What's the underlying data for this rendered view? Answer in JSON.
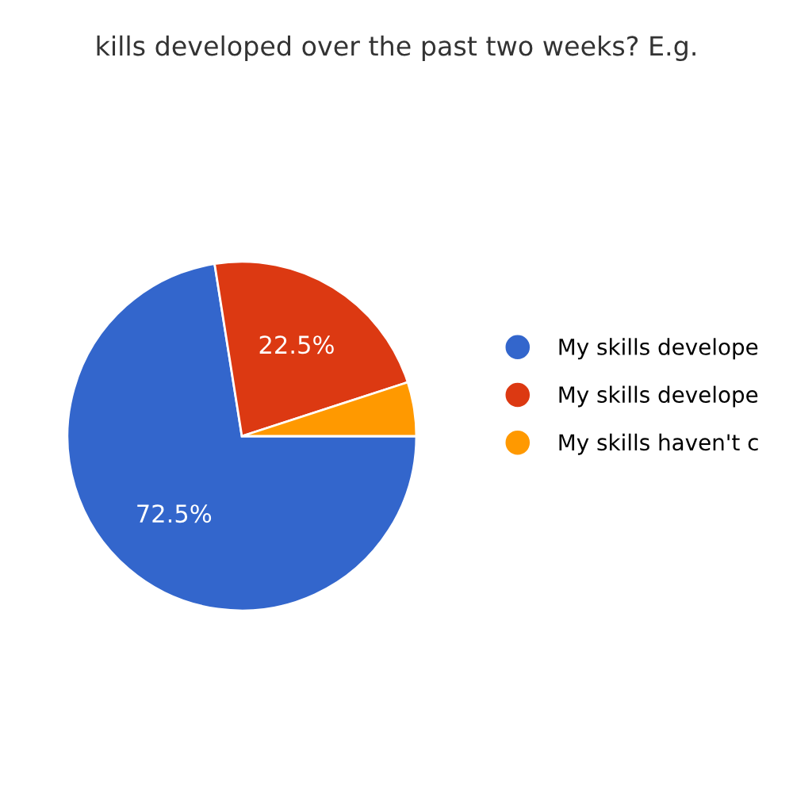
{
  "chart_data": {
    "type": "pie",
    "title": "kills developed over the past two weeks? E.g.",
    "categories": [
      "My skills develope",
      "My skills develope",
      "My skills haven't c"
    ],
    "values": [
      72.5,
      22.5,
      5
    ],
    "colors": [
      "#3366cc",
      "#dc3912",
      "#ff9900"
    ],
    "value_labels": [
      "72.5%",
      "22.5%",
      null
    ],
    "legend": "right"
  }
}
